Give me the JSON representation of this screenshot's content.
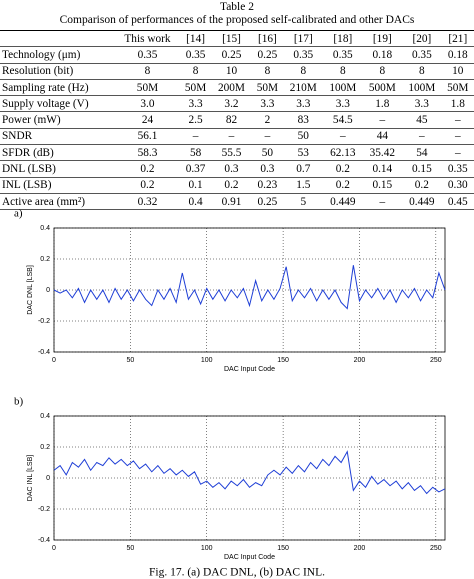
{
  "table_title": "Table 2",
  "table_caption": "Comparison of performances of the proposed self-calibrated and other DACs",
  "table": {
    "header": [
      "This work",
      "[14]",
      "[15]",
      "[16]",
      "[17]",
      "[18]",
      "[19]",
      "[20]",
      "[21]"
    ],
    "rows": [
      [
        "Technology (μm)",
        "0.35",
        "0.35",
        "0.25",
        "0.25",
        "0.35",
        "0.35",
        "0.18",
        "0.35",
        "0.18"
      ],
      [
        "Resolution (bit)",
        "8",
        "8",
        "10",
        "8",
        "8",
        "8",
        "8",
        "8",
        "10"
      ],
      [
        "Sampling rate (Hz)",
        "50M",
        "50M",
        "200M",
        "50M",
        "210M",
        "100M",
        "500M",
        "100M",
        "50M"
      ],
      [
        "Supply voltage (V)",
        "3.0",
        "3.3",
        "3.2",
        "3.3",
        "3.3",
        "3.3",
        "1.8",
        "3.3",
        "1.8"
      ],
      [
        "Power (mW)",
        "24",
        "2.5",
        "82",
        "2",
        "83",
        "54.5",
        "–",
        "45",
        "–"
      ],
      [
        "SNDR",
        "56.1",
        "–",
        "–",
        "–",
        "50",
        "–",
        "44",
        "–",
        "–"
      ],
      [
        "SFDR (dB)",
        "58.3",
        "58",
        "55.5",
        "50",
        "53",
        "62.13",
        "35.42",
        "54",
        "–"
      ],
      [
        "DNL (LSB)",
        "0.2",
        "0.37",
        "0.3",
        "0.3",
        "0.7",
        "0.2",
        "0.14",
        "0.15",
        "0.35"
      ],
      [
        "INL (LSB)",
        "0.2",
        "0.1",
        "0.2",
        "0.23",
        "1.5",
        "0.2",
        "0.15",
        "0.2",
        "0.30"
      ],
      [
        "Active area (mm²)",
        "0.32",
        "0.4",
        "0.91",
        "0.25",
        "5",
        "0.449",
        "–",
        "0.449",
        "0.45"
      ]
    ]
  },
  "chart_data": [
    {
      "type": "line",
      "label": "a)",
      "xlabel": "DAC Input Code",
      "ylabel": "DAC DNL [LSB]",
      "color": "#1f3fd6",
      "x": [
        0,
        4,
        8,
        12,
        16,
        20,
        24,
        28,
        32,
        36,
        40,
        44,
        48,
        52,
        56,
        60,
        64,
        68,
        72,
        76,
        80,
        84,
        88,
        92,
        96,
        100,
        104,
        108,
        112,
        116,
        120,
        124,
        128,
        132,
        136,
        140,
        144,
        148,
        152,
        156,
        160,
        164,
        168,
        172,
        176,
        180,
        184,
        188,
        192,
        196,
        200,
        204,
        208,
        212,
        216,
        220,
        224,
        228,
        232,
        236,
        240,
        244,
        248,
        252,
        256
      ],
      "values": [
        0,
        -0.02,
        0,
        -0.05,
        0.01,
        -0.08,
        0,
        -0.06,
        0,
        -0.08,
        0.01,
        -0.06,
        0,
        -0.07,
        0,
        -0.06,
        -0.1,
        0,
        -0.06,
        0.01,
        -0.08,
        0.11,
        -0.06,
        0,
        -0.09,
        0.01,
        -0.06,
        0,
        -0.07,
        0,
        -0.05,
        0.01,
        -0.1,
        0.06,
        -0.07,
        0,
        -0.06,
        0.01,
        0.15,
        -0.07,
        0,
        -0.05,
        0.01,
        -0.07,
        0,
        -0.06,
        0,
        -0.08,
        -0.12,
        0.16,
        -0.07,
        0,
        -0.05,
        0.01,
        -0.06,
        0,
        -0.08,
        0,
        -0.05,
        0.01,
        -0.07,
        0,
        -0.05,
        0.11,
        0
      ],
      "xlim": [
        0,
        256
      ],
      "xticks": [
        0,
        50,
        100,
        150,
        200,
        250
      ],
      "ylim": [
        -0.4,
        0.4
      ],
      "yticks": [
        0.4,
        0.2,
        0,
        -0.2,
        -0.4
      ],
      "grid": true
    },
    {
      "type": "line",
      "label": "b)",
      "xlabel": "DAC Input Code",
      "ylabel": "DAC INL [LSB]",
      "color": "#1f3fd6",
      "x": [
        0,
        4,
        8,
        12,
        16,
        20,
        24,
        28,
        32,
        36,
        40,
        44,
        48,
        52,
        56,
        60,
        64,
        68,
        72,
        76,
        80,
        84,
        88,
        92,
        96,
        100,
        104,
        108,
        112,
        116,
        120,
        124,
        128,
        132,
        136,
        140,
        144,
        148,
        152,
        156,
        160,
        164,
        168,
        172,
        176,
        180,
        184,
        188,
        192,
        196,
        200,
        204,
        208,
        212,
        216,
        220,
        224,
        228,
        232,
        236,
        240,
        244,
        248,
        252,
        256
      ],
      "values": [
        0.05,
        0.08,
        0.02,
        0.1,
        0.07,
        0.12,
        0.05,
        0.1,
        0.08,
        0.13,
        0.09,
        0.12,
        0.08,
        0.11,
        0.06,
        0.09,
        0.04,
        0.08,
        0.03,
        0.06,
        0.02,
        0.05,
        0.01,
        0.04,
        -0.04,
        -0.02,
        -0.06,
        -0.03,
        -0.07,
        -0.02,
        -0.05,
        -0.01,
        -0.06,
        -0.03,
        -0.05,
        0.02,
        0.05,
        0.02,
        0.07,
        0.03,
        0.08,
        0.04,
        0.1,
        0.06,
        0.12,
        0.08,
        0.14,
        0.1,
        0.17,
        -0.08,
        -0.02,
        -0.06,
        0.01,
        -0.04,
        -0.01,
        -0.05,
        -0.02,
        -0.07,
        -0.03,
        -0.08,
        -0.05,
        -0.1,
        -0.06,
        -0.09,
        -0.07
      ],
      "xlim": [
        0,
        256
      ],
      "xticks": [
        0,
        50,
        100,
        150,
        200,
        250
      ],
      "ylim": [
        -0.4,
        0.4
      ],
      "yticks": [
        0.4,
        0.2,
        0,
        -0.2,
        -0.4
      ],
      "grid": true
    }
  ],
  "figure_caption": "Fig. 17. (a) DAC DNL, (b) DAC INL."
}
